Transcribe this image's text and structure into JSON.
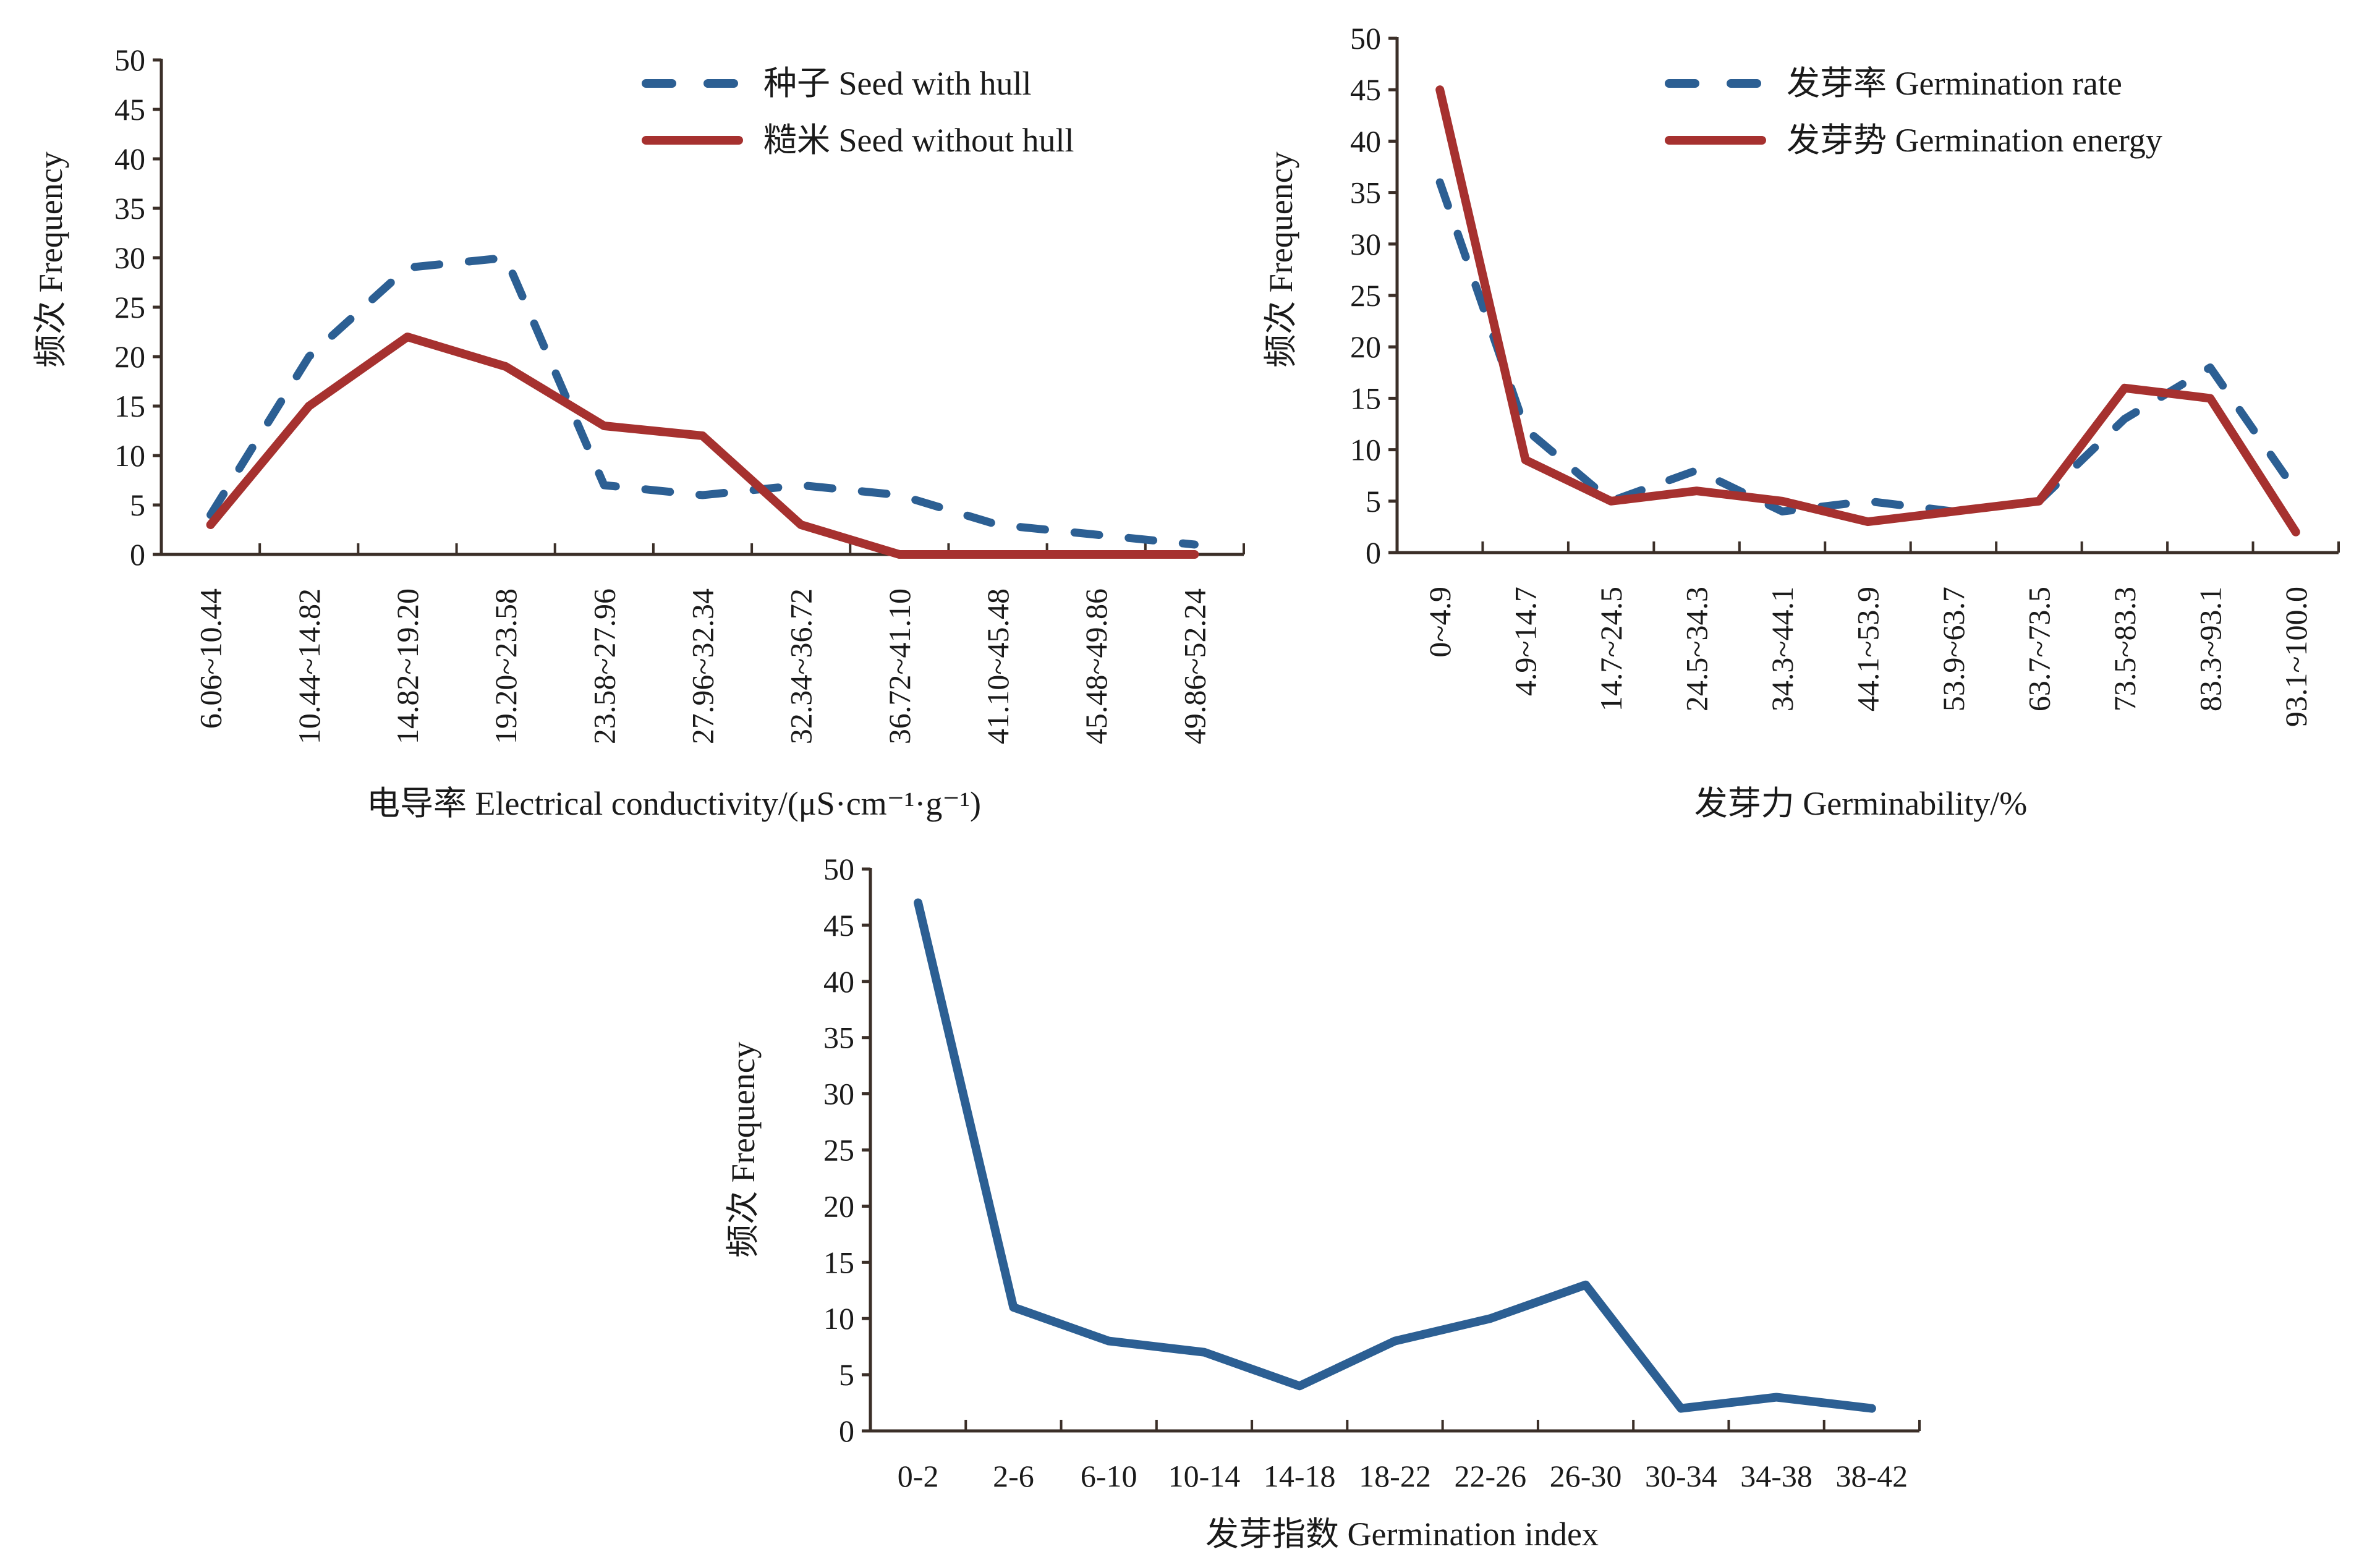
{
  "colors": {
    "blue": "#2C5F93",
    "red": "#A6312F",
    "axis": "#3B2F28"
  },
  "chart_data": [
    {
      "type": "line",
      "id": "conductivity",
      "title": "",
      "xlabel": "电导率 Electrical conductivity/(μS·cm⁻¹·g⁻¹)",
      "ylabel": "频次 Frequency",
      "ylim": [
        0,
        50
      ],
      "yticks": [
        0,
        5,
        10,
        15,
        20,
        25,
        30,
        35,
        40,
        45,
        50
      ],
      "grid": false,
      "legend_position": "top-right",
      "x_label_rotation": "vertical",
      "categories": [
        "6.06~10.44",
        "10.44~14.82",
        "14.82~19.20",
        "19.20~23.58",
        "23.58~27.96",
        "27.96~32.34",
        "32.34~36.72",
        "36.72~41.10",
        "41.10~45.48",
        "45.48~49.86",
        "49.86~52.24"
      ],
      "series": [
        {
          "name": "种子 Seed with hull",
          "style": "dashed",
          "color": "#2C5F93",
          "values": [
            4,
            20,
            29,
            30,
            7,
            6,
            7,
            6,
            3,
            2,
            1
          ]
        },
        {
          "name": "糙米 Seed without hull",
          "style": "solid",
          "color": "#A6312F",
          "values": [
            3,
            15,
            22,
            19,
            13,
            12,
            3,
            0,
            0,
            0,
            0
          ]
        }
      ]
    },
    {
      "type": "line",
      "id": "germinability",
      "title": "",
      "xlabel": "发芽力 Germinability/%",
      "ylabel": "频次 Frequency",
      "ylim": [
        0,
        50
      ],
      "yticks": [
        0,
        5,
        10,
        15,
        20,
        25,
        30,
        35,
        40,
        45,
        50
      ],
      "grid": false,
      "legend_position": "top-right",
      "x_label_rotation": "vertical",
      "categories": [
        "0~4.9",
        "4.9~14.7",
        "14.7~24.5",
        "24.5~34.3",
        "34.3~44.1",
        "44.1~53.9",
        "53.9~63.7",
        "63.7~73.5",
        "73.5~83.3",
        "83.3~93.1",
        "93.1~100.0"
      ],
      "series": [
        {
          "name": "发芽率 Germination rate",
          "style": "dashed",
          "color": "#2C5F93",
          "values": [
            36,
            12,
            5,
            8,
            4,
            5,
            4,
            5,
            13,
            18,
            6
          ]
        },
        {
          "name": "发芽势 Germination energy",
          "style": "solid",
          "color": "#A6312F",
          "values": [
            45,
            9,
            5,
            6,
            5,
            3,
            4,
            5,
            16,
            15,
            2
          ]
        }
      ]
    },
    {
      "type": "line",
      "id": "germination-index",
      "title": "",
      "xlabel": "发芽指数 Germination index",
      "ylabel": "频次 Frequency",
      "ylim": [
        0,
        50
      ],
      "yticks": [
        0,
        5,
        10,
        15,
        20,
        25,
        30,
        35,
        40,
        45,
        50
      ],
      "grid": false,
      "legend_position": "none",
      "x_label_rotation": "horizontal",
      "categories": [
        "0-2",
        "2-6",
        "6-10",
        "10-14",
        "14-18",
        "18-22",
        "22-26",
        "26-30",
        "30-34",
        "34-38",
        "38-42"
      ],
      "series": [
        {
          "name": "Germination index",
          "style": "solid",
          "color": "#2C5F93",
          "values": [
            47,
            11,
            8,
            7,
            4,
            8,
            10,
            13,
            2,
            3,
            2
          ]
        }
      ]
    }
  ]
}
